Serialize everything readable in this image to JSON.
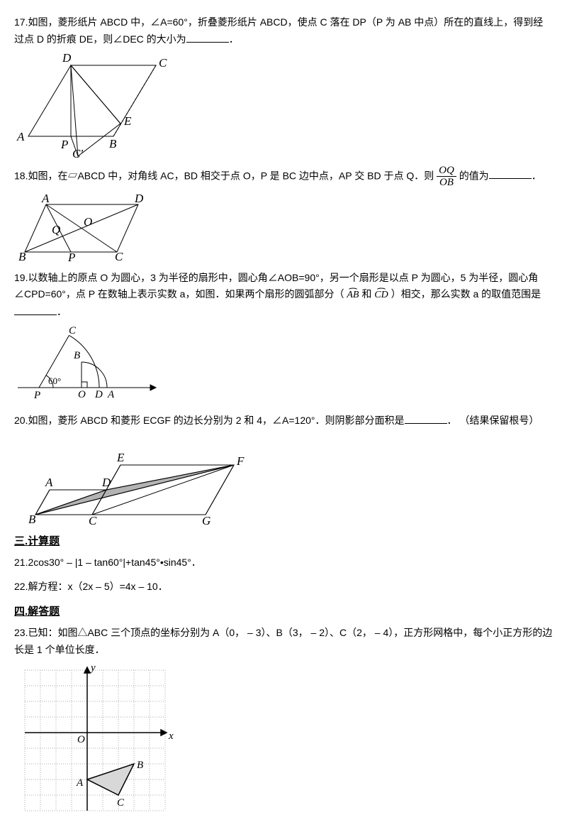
{
  "p17": {
    "text": "17.如图，菱形纸片 ABCD 中，∠A=60°，折叠菱形纸片 ABCD，使点 C 落在 DP（P 为 AB 中点）所在的直线上，得到经过点 D 的折痕 DE，则∠DEC 的大小为",
    "suffix": "．",
    "labels": {
      "A": "A",
      "B": "B",
      "C": "C",
      "D": "D",
      "E": "E",
      "P": "P",
      "Cp": "C'"
    },
    "style": {
      "stroke": "#000",
      "strokeWidth": 1,
      "font": "italic 17px 'Times New Roman', serif"
    },
    "fig_size": [
      230,
      150
    ]
  },
  "p18": {
    "text": "18.如图，在▱ABCD 中，对角线 AC，BD 相交于点 O，P 是 BC 边中点，AP 交 BD 于点 Q．则 ",
    "mid": " 的值为",
    "suffix": "．",
    "frac": {
      "num": "OQ",
      "den": "OB"
    },
    "labels": {
      "A": "A",
      "B": "B",
      "C": "C",
      "D": "D",
      "O": "O",
      "P": "P",
      "Q": "Q"
    },
    "style": {
      "stroke": "#000",
      "strokeWidth": 1,
      "font": "italic 17px 'Times New Roman', serif"
    },
    "fig_size": [
      190,
      100
    ]
  },
  "p19": {
    "text_a": "19.以数轴上的原点 O 为圆心，3 为半径的扇形中，圆心角∠AOB=90°，另一个扇形是以点 P 为圆心，5 为半径，圆心角∠CPD=60°，点 P 在数轴上表示实数 a，如图．如果两个扇形的圆弧部分（",
    "text_b": "和",
    "text_c": "）相交，那么实数 a 的取值范围是",
    "suffix": "．",
    "arcs": {
      "ab": "AB",
      "cd": "CD"
    },
    "labels": {
      "O": "O",
      "A": "A",
      "B": "B",
      "C": "C",
      "D": "D",
      "P": "P",
      "angle": "60°"
    },
    "style": {
      "stroke": "#000",
      "strokeWidth": 1,
      "font": "italic 15px 'Times New Roman', serif",
      "fill": "#fff"
    },
    "fig_size": [
      220,
      115
    ]
  },
  "p20": {
    "text": "20.如图，菱形 ABCD 和菱形 ECGF 的边长分别为 2 和 4，∠A=120°．则阴影部分面积是",
    "suffix": "．  （结果保留根号）",
    "labels": {
      "A": "A",
      "B": "B",
      "C": "C",
      "D": "D",
      "E": "E",
      "F": "F",
      "G": "G"
    },
    "style": {
      "stroke": "#000",
      "strokeWidth": 1,
      "shade": "#999999",
      "font": "italic 17px 'Times New Roman', serif"
    },
    "fig_size": [
      330,
      135
    ]
  },
  "sec3": {
    "text": "三.计算题"
  },
  "p21": {
    "text": "21.2cos30° – |1 – tan60°|+tan45°•sin45°．"
  },
  "p22": {
    "text": "22.解方程：x（2x – 5）=4x – 10．"
  },
  "sec4": {
    "text": "四.解答题"
  },
  "p23": {
    "text": "23.已知：如图△ABC 三个顶点的坐标分别为 A（0， – 3）、B（3， – 2）、C（2， – 4），正方形网格中，每个小正方形的边长是 1 个单位长度．",
    "labels": {
      "O": "O",
      "x": "x",
      "y": "y",
      "A": "A",
      "B": "B",
      "C": "C"
    },
    "style": {
      "grid": "#aaaaaa",
      "axis": "#000",
      "stroke": "#000",
      "fill": "#dddddd",
      "font": "italic 15px 'Times New Roman', serif"
    },
    "grid": {
      "xmin": -4,
      "xmax": 5,
      "ymin": -5,
      "ymax": 4,
      "cell": 22
    },
    "fig_size": [
      230,
      220
    ]
  }
}
